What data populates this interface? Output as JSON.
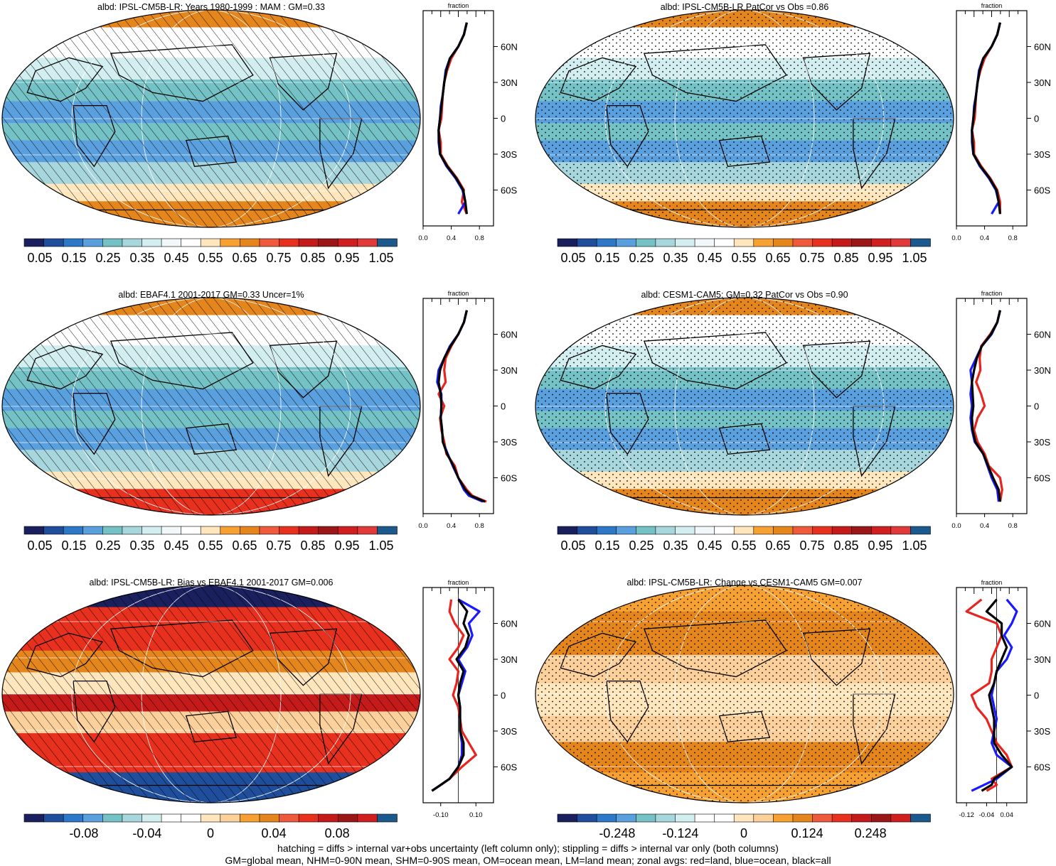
{
  "colors": {
    "abs_levels": [
      "#1a1f5e",
      "#1f4f9c",
      "#2e78c9",
      "#5aa0de",
      "#74c2c6",
      "#a7d6dc",
      "#d3eef0",
      "#f2f8fa",
      "#ffffff",
      "#ffe6bd",
      "#f7a133",
      "#e5861d",
      "#f05a3c",
      "#e8301f",
      "#c41a1a",
      "#9b1616",
      "#d01f1f",
      "#e23a3a",
      "#1c5a8e"
    ],
    "diff_levels": [
      "#1a1f5e",
      "#1f4f9c",
      "#2e78c9",
      "#5aa0de",
      "#74c2c6",
      "#a7d6dc",
      "#d3eef0",
      "#ffffff",
      "#ffffff",
      "#ffe6bd",
      "#fcd09a",
      "#f7a133",
      "#e5861d",
      "#f05a3c",
      "#e8301f",
      "#c41a1a",
      "#9b1616",
      "#d01f1f",
      "#1c5a8e"
    ],
    "land": "#e8241e",
    "ocean": "#1a1aff",
    "all": "#000000"
  },
  "panels": [
    {
      "id": "p1",
      "title": "albd: IPSL-CM5B-LR: Years 1980-1999 : MAM : GM=0.33",
      "kind": "abs",
      "pattern": "hatch",
      "cb_ticks": [
        "0.05",
        "0.15",
        "0.25",
        "0.35",
        "0.45",
        "0.55",
        "0.65",
        "0.75",
        "0.85",
        "0.95",
        "1.05"
      ]
    },
    {
      "id": "p2",
      "title": "albd: IPSL-CM5B-LR PatCor vs Obs =0.86",
      "kind": "abs",
      "pattern": "stipple",
      "cb_ticks": [
        "0.05",
        "0.15",
        "0.25",
        "0.35",
        "0.45",
        "0.55",
        "0.65",
        "0.75",
        "0.85",
        "0.95",
        "1.05"
      ]
    },
    {
      "id": "p3",
      "title": "albd: EBAF4.1 2001-2017 GM=0.33 Uncer=1%",
      "kind": "abs",
      "pattern": "hatch",
      "cb_ticks": [
        "0.05",
        "0.15",
        "0.25",
        "0.35",
        "0.45",
        "0.55",
        "0.65",
        "0.75",
        "0.85",
        "0.95",
        "1.05"
      ]
    },
    {
      "id": "p4",
      "title": "albd: CESM1-CAM5: GM=0.32 PatCor vs Obs =0.90",
      "kind": "abs",
      "pattern": "stipple",
      "cb_ticks": [
        "0.05",
        "0.15",
        "0.25",
        "0.35",
        "0.45",
        "0.55",
        "0.65",
        "0.75",
        "0.85",
        "0.95",
        "1.05"
      ]
    },
    {
      "id": "p5",
      "title": "albd: IPSL-CM5B-LR: Bias vs EBAF4.1 2001-2017 GM=0.006",
      "kind": "bias",
      "pattern": "hatch",
      "cb_ticks": [
        "-0.08",
        "-0.04",
        "0",
        "0.04",
        "0.08"
      ]
    },
    {
      "id": "p6",
      "title": "albd: IPSL-CM5B-LR: Change vs CESM1-CAM5 GM=0.007",
      "kind": "change",
      "pattern": "stipple",
      "cb_ticks": [
        "-0.248",
        "-0.124",
        "0",
        "0.124",
        "0.248"
      ]
    }
  ],
  "chart_data": [
    {
      "type": "line",
      "panel": "p1",
      "title": "fraction",
      "xlim": [
        0,
        1
      ],
      "x_ticks": [
        "0.0",
        "0.4",
        "0.8"
      ],
      "y_ticks": [
        "60N",
        "30N",
        "0",
        "30S",
        "60S"
      ],
      "lat": [
        -80,
        -70,
        -60,
        -50,
        -40,
        -30,
        -20,
        -10,
        0,
        10,
        20,
        30,
        40,
        50,
        60,
        70,
        80
      ],
      "series": [
        {
          "name": "land",
          "values": [
            0.62,
            0.55,
            0.58,
            0.48,
            0.35,
            0.25,
            0.25,
            0.22,
            0.26,
            0.27,
            0.28,
            0.3,
            0.34,
            0.4,
            0.5,
            0.58,
            0.62
          ]
        },
        {
          "name": "ocean",
          "values": [
            0.5,
            0.6,
            0.56,
            0.46,
            0.33,
            0.24,
            0.22,
            0.22,
            0.24,
            0.25,
            0.28,
            0.3,
            0.32,
            0.38,
            0.5,
            0.58,
            0.62
          ]
        },
        {
          "name": "all",
          "values": [
            0.62,
            0.6,
            0.57,
            0.47,
            0.34,
            0.24,
            0.23,
            0.22,
            0.24,
            0.26,
            0.28,
            0.3,
            0.33,
            0.38,
            0.5,
            0.58,
            0.62
          ]
        }
      ]
    },
    {
      "type": "line",
      "panel": "p2",
      "title": "fraction",
      "xlim": [
        0,
        1
      ],
      "x_ticks": [
        "0.0",
        "0.4",
        "0.8"
      ],
      "y_ticks": [
        "60N",
        "30N",
        "0",
        "30S",
        "60S"
      ],
      "lat": [
        -80,
        -70,
        -60,
        -50,
        -40,
        -30,
        -20,
        -10,
        0,
        10,
        20,
        30,
        40,
        50,
        60,
        70,
        80
      ],
      "series": [
        {
          "name": "land",
          "values": [
            0.62,
            0.62,
            0.58,
            0.48,
            0.35,
            0.25,
            0.25,
            0.22,
            0.26,
            0.27,
            0.28,
            0.3,
            0.34,
            0.4,
            0.5,
            0.58,
            0.62
          ]
        },
        {
          "name": "ocean",
          "values": [
            0.5,
            0.6,
            0.56,
            0.46,
            0.33,
            0.24,
            0.22,
            0.22,
            0.24,
            0.25,
            0.28,
            0.3,
            0.32,
            0.38,
            0.5,
            0.58,
            0.62
          ]
        },
        {
          "name": "all",
          "values": [
            0.62,
            0.6,
            0.57,
            0.47,
            0.34,
            0.24,
            0.23,
            0.22,
            0.24,
            0.26,
            0.28,
            0.3,
            0.33,
            0.38,
            0.5,
            0.58,
            0.62
          ]
        }
      ]
    },
    {
      "type": "line",
      "panel": "p3",
      "title": "fraction",
      "xlim": [
        0,
        1
      ],
      "x_ticks": [
        "0.0",
        "0.4",
        "0.8"
      ],
      "y_ticks": [
        "60N",
        "30N",
        "0",
        "30S",
        "60S"
      ],
      "lat": [
        -80,
        -75,
        -70,
        -60,
        -50,
        -40,
        -30,
        -20,
        -10,
        0,
        10,
        20,
        30,
        40,
        50,
        60,
        70,
        80
      ],
      "series": [
        {
          "name": "land",
          "values": [
            0.9,
            0.7,
            0.62,
            0.5,
            0.45,
            0.33,
            0.3,
            0.26,
            0.24,
            0.3,
            0.22,
            0.32,
            0.3,
            0.32,
            0.4,
            0.5,
            0.58,
            0.62
          ]
        },
        {
          "name": "ocean",
          "values": [
            0.85,
            0.65,
            0.58,
            0.5,
            0.42,
            0.35,
            0.28,
            0.27,
            0.25,
            0.26,
            0.26,
            0.2,
            0.22,
            0.3,
            0.38,
            0.5,
            0.58,
            0.62
          ]
        },
        {
          "name": "all",
          "values": [
            0.88,
            0.68,
            0.6,
            0.5,
            0.43,
            0.34,
            0.28,
            0.27,
            0.25,
            0.26,
            0.25,
            0.22,
            0.24,
            0.3,
            0.39,
            0.5,
            0.58,
            0.62
          ]
        }
      ]
    },
    {
      "type": "line",
      "panel": "p4",
      "title": "fraction",
      "xlim": [
        0,
        1
      ],
      "x_ticks": [
        "0.0",
        "0.4",
        "0.8"
      ],
      "y_ticks": [
        "60N",
        "30N",
        "0",
        "30S",
        "60S"
      ],
      "lat": [
        -80,
        -70,
        -60,
        -50,
        -40,
        -30,
        -20,
        -10,
        0,
        10,
        20,
        30,
        40,
        50,
        60,
        70,
        80
      ],
      "series": [
        {
          "name": "land",
          "values": [
            0.62,
            0.65,
            0.62,
            0.46,
            0.4,
            0.3,
            0.25,
            0.3,
            0.4,
            0.35,
            0.28,
            0.34,
            0.33,
            0.35,
            0.48,
            0.58,
            0.62
          ]
        },
        {
          "name": "ocean",
          "values": [
            0.6,
            0.58,
            0.5,
            0.44,
            0.38,
            0.26,
            0.22,
            0.2,
            0.22,
            0.2,
            0.22,
            0.2,
            0.28,
            0.36,
            0.5,
            0.58,
            0.62
          ]
        },
        {
          "name": "all",
          "values": [
            0.62,
            0.6,
            0.52,
            0.45,
            0.38,
            0.27,
            0.23,
            0.22,
            0.24,
            0.23,
            0.22,
            0.25,
            0.29,
            0.36,
            0.49,
            0.58,
            0.62
          ]
        }
      ]
    },
    {
      "type": "line",
      "panel": "p5",
      "title": "fraction",
      "xlim": [
        -0.2,
        0.2
      ],
      "x_ticks": [
        "-0.10",
        "0.10"
      ],
      "y_ticks": [
        "60N",
        "30N",
        "0",
        "30S",
        "60S"
      ],
      "lat": [
        -80,
        -75,
        -70,
        -60,
        -50,
        -40,
        -30,
        -20,
        -10,
        0,
        10,
        20,
        30,
        40,
        50,
        60,
        70,
        80
      ],
      "series": [
        {
          "name": "land",
          "values": [
            -0.15,
            -0.1,
            -0.05,
            0.02,
            0.1,
            0.06,
            0.02,
            0.01,
            0.0,
            -0.03,
            -0.01,
            0.0,
            -0.05,
            0.0,
            0.03,
            -0.02,
            -0.05,
            -0.04
          ]
        },
        {
          "name": "ocean",
          "values": [
            -0.15,
            -0.1,
            -0.05,
            0.0,
            0.02,
            0.02,
            0.01,
            0.01,
            0.01,
            0.0,
            0.02,
            0.04,
            0.0,
            0.05,
            0.08,
            0.06,
            0.12,
            0.0
          ]
        },
        {
          "name": "all",
          "values": [
            -0.15,
            -0.1,
            -0.05,
            0.0,
            0.03,
            0.03,
            0.01,
            0.01,
            0.01,
            0.0,
            0.01,
            0.03,
            -0.01,
            0.04,
            0.06,
            0.03,
            0.05,
            0.0
          ]
        }
      ]
    },
    {
      "type": "line",
      "panel": "p6",
      "title": "fraction",
      "xlim": [
        -0.16,
        0.12
      ],
      "x_ticks": [
        "-0.12",
        "-0.04",
        "0.04"
      ],
      "y_ticks": [
        "60N",
        "30N",
        "0",
        "30S",
        "60S"
      ],
      "lat": [
        -80,
        -75,
        -70,
        -60,
        -50,
        -40,
        -30,
        -20,
        -10,
        0,
        10,
        20,
        30,
        40,
        50,
        60,
        70,
        80
      ],
      "series": [
        {
          "name": "land",
          "values": [
            -0.04,
            0.0,
            -0.02,
            0.06,
            0.04,
            0.0,
            -0.02,
            -0.04,
            -0.08,
            -0.1,
            -0.03,
            -0.02,
            -0.02,
            0.0,
            0.02,
            0.0,
            -0.12,
            -0.06
          ]
        },
        {
          "name": "ocean",
          "values": [
            -0.1,
            -0.05,
            0.0,
            0.06,
            0.0,
            -0.02,
            -0.01,
            0.0,
            -0.01,
            -0.02,
            -0.01,
            0.0,
            0.04,
            0.06,
            0.03,
            0.06,
            0.08,
            0.04
          ]
        },
        {
          "name": "all",
          "values": [
            -0.06,
            -0.02,
            -0.01,
            0.06,
            0.02,
            -0.01,
            -0.01,
            -0.01,
            -0.02,
            -0.03,
            -0.01,
            0.0,
            0.02,
            0.04,
            0.02,
            0.02,
            -0.04,
            0.0
          ]
        }
      ]
    }
  ],
  "footer": {
    "line1": "hatching = diffs > internal var+obs uncertainty (left column only); stippling = diffs > internal var only (both columns)",
    "line2": "GM=global mean, NHM=0-90N mean, SHM=0-90S mean, OM=ocean mean, LM=land mean; zonal avgs: red=land, blue=ocean, black=all"
  }
}
